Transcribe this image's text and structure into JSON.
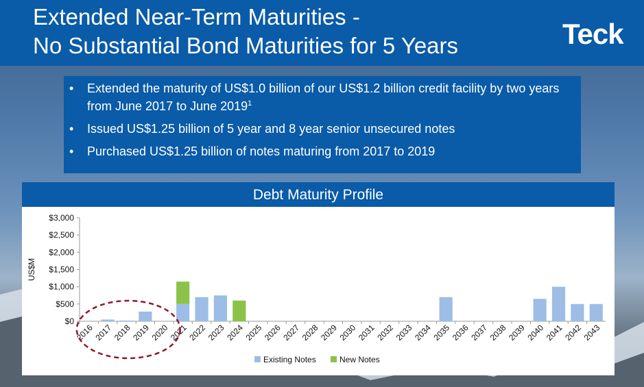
{
  "header": {
    "title_line1": "Extended Near-Term Maturities -",
    "title_line2": "No Substantial Bond Maturities for 5 Years",
    "logo": "Teck"
  },
  "bullets": [
    {
      "text": "Extended the maturity of US$1.0 billion of our US$1.2 billion credit facility by two years from June 2017 to June 2019",
      "footnote": "1"
    },
    {
      "text": "Issued US$1.25 billion of 5 year and 8 year senior unsecured notes",
      "footnote": ""
    },
    {
      "text": "Purchased US$1.25 billion of notes maturing from 2017 to 2019",
      "footnote": ""
    }
  ],
  "colors": {
    "existing": "#9dbde6",
    "new": "#8bc34a",
    "header": "#0a5ba8",
    "circle": "#8b1a2b"
  },
  "chart_data": {
    "type": "bar",
    "title": "Debt Maturity Profile",
    "ylabel": "US$M",
    "ylim": [
      0,
      3000
    ],
    "yticks": [
      "$0",
      "$500",
      "$1,000",
      "$1,500",
      "$2,000",
      "$2,500",
      "$3,000"
    ],
    "categories": [
      "2016",
      "2017",
      "2018",
      "2019",
      "2020",
      "2021",
      "2022",
      "2023",
      "2024",
      "2025",
      "2026",
      "2027",
      "2028",
      "2029",
      "2030",
      "2031",
      "2032",
      "2033",
      "2034",
      "2035",
      "2036",
      "2037",
      "2038",
      "2039",
      "2040",
      "2041",
      "2042",
      "2043"
    ],
    "series": [
      {
        "name": "Existing Notes",
        "values": [
          0,
          50,
          20,
          280,
          0,
          500,
          700,
          750,
          0,
          0,
          0,
          0,
          0,
          0,
          0,
          0,
          0,
          0,
          0,
          700,
          0,
          0,
          0,
          0,
          650,
          1000,
          500,
          500
        ]
      },
      {
        "name": "New Notes",
        "values": [
          0,
          0,
          0,
          0,
          0,
          650,
          0,
          0,
          600,
          0,
          0,
          0,
          0,
          0,
          0,
          0,
          0,
          0,
          0,
          0,
          0,
          0,
          0,
          0,
          0,
          0,
          0,
          0
        ]
      }
    ],
    "stacked": true,
    "legend": "bottom",
    "annotation": "dashed ellipse highlighting 2016-2020"
  }
}
